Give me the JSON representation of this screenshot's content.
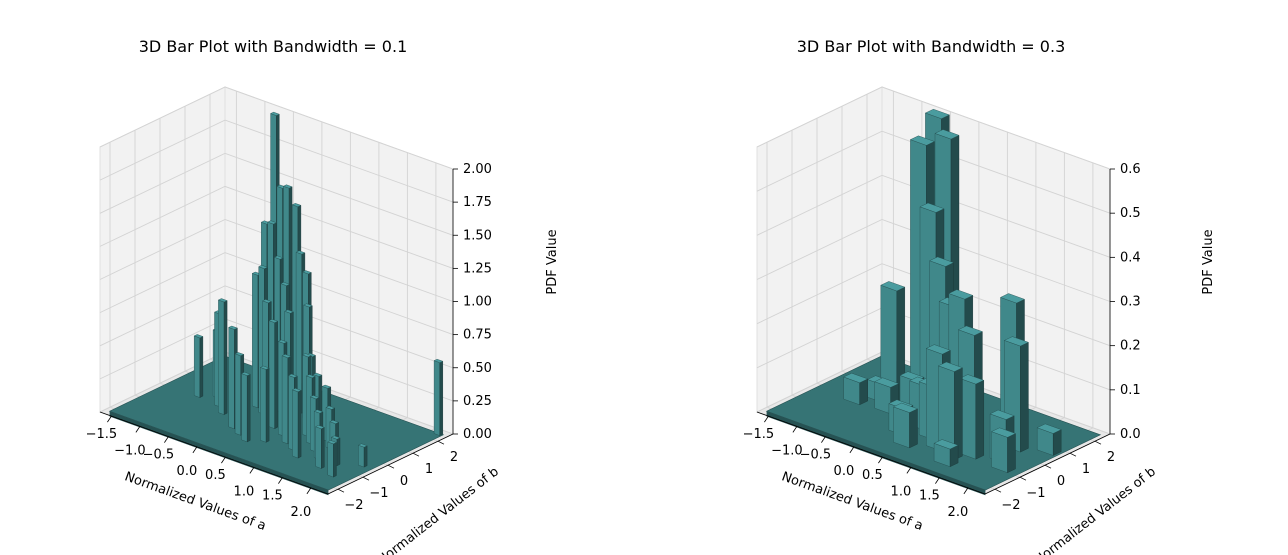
{
  "chart_data": [
    {
      "type": "bar3d",
      "title": "3D Bar Plot with Bandwidth = 0.1",
      "xlabel": "Normalized Values of a",
      "ylabel": "Normalized Values of b",
      "zlabel": "PDF Value",
      "xlim": [
        -1.7,
        2.3
      ],
      "ylim": [
        -2.4,
        2.6
      ],
      "zlim": [
        0,
        2.0
      ],
      "xticks": [
        "−1.5",
        "−1.0",
        "−0.5",
        "0.0",
        "0.5",
        "1.0",
        "1.5",
        "2.0"
      ],
      "yticks": [
        "−2",
        "−1",
        "0",
        "1",
        "2"
      ],
      "zticks": [
        "0.00",
        "0.25",
        "0.50",
        "0.75",
        "1.00",
        "1.25",
        "1.50",
        "1.75",
        "2.00"
      ],
      "bar_color": "#40888a",
      "bars": [
        {
          "x": -0.55,
          "y": 1.8,
          "z": 2.05
        },
        {
          "x": -0.35,
          "y": 1.6,
          "z": 1.55
        },
        {
          "x": -0.15,
          "y": 1.4,
          "z": 1.6
        },
        {
          "x": 0.05,
          "y": 1.3,
          "z": 1.5
        },
        {
          "x": 0.25,
          "y": 1.0,
          "z": 1.2
        },
        {
          "x": 0.45,
          "y": 0.8,
          "z": 1.1
        },
        {
          "x": 0.6,
          "y": 0.5,
          "z": 0.9
        },
        {
          "x": -0.45,
          "y": 1.2,
          "z": 1.3
        },
        {
          "x": -0.25,
          "y": 1.0,
          "z": 1.35
        },
        {
          "x": 0.0,
          "y": 0.7,
          "z": 1.15
        },
        {
          "x": 0.2,
          "y": 0.5,
          "z": 1.0
        },
        {
          "x": 0.4,
          "y": 0.2,
          "z": 0.85
        },
        {
          "x": -0.3,
          "y": 0.5,
          "z": 1.0
        },
        {
          "x": -0.1,
          "y": 0.3,
          "z": 1.1
        },
        {
          "x": 0.1,
          "y": 0.0,
          "z": 0.9
        },
        {
          "x": 0.3,
          "y": -0.2,
          "z": 0.8
        },
        {
          "x": 0.55,
          "y": -0.4,
          "z": 0.7
        },
        {
          "x": 0.75,
          "y": -0.7,
          "z": 0.65
        },
        {
          "x": 0.95,
          "y": -0.9,
          "z": 0.55
        },
        {
          "x": 1.15,
          "y": -1.2,
          "z": 0.5
        },
        {
          "x": 0.8,
          "y": 0.0,
          "z": 0.6
        },
        {
          "x": 1.0,
          "y": -0.3,
          "z": 0.5
        },
        {
          "x": 1.2,
          "y": -0.6,
          "z": 0.4
        },
        {
          "x": 1.4,
          "y": -0.9,
          "z": 0.35
        },
        {
          "x": 1.6,
          "y": -1.3,
          "z": 0.3
        },
        {
          "x": 0.7,
          "y": 0.4,
          "z": 0.55
        },
        {
          "x": 0.9,
          "y": 0.2,
          "z": 0.45
        },
        {
          "x": 1.1,
          "y": 0.1,
          "z": 0.4
        },
        {
          "x": 1.3,
          "y": -0.2,
          "z": 0.3
        },
        {
          "x": 1.5,
          "y": -0.5,
          "z": 0.25
        },
        {
          "x": 1.7,
          "y": -0.9,
          "z": 0.2
        },
        {
          "x": 2.1,
          "y": 2.3,
          "z": 0.55
        },
        {
          "x": -1.1,
          "y": 0.0,
          "z": 0.45
        },
        {
          "x": 0.5,
          "y": -1.0,
          "z": 0.55
        },
        {
          "x": 0.3,
          "y": -1.3,
          "z": 0.5
        },
        {
          "x": 0.1,
          "y": -1.1,
          "z": 0.6
        },
        {
          "x": -0.1,
          "y": -0.9,
          "z": 0.75
        },
        {
          "x": -0.5,
          "y": -0.4,
          "z": 0.85
        },
        {
          "x": -0.7,
          "y": -0.1,
          "z": 0.7
        },
        {
          "x": -0.9,
          "y": 0.3,
          "z": 0.5
        },
        {
          "x": 1.9,
          "y": -1.5,
          "z": 0.25
        },
        {
          "x": 2.0,
          "y": -0.5,
          "z": 0.15
        }
      ]
    },
    {
      "type": "bar3d",
      "title": "3D Bar Plot with Bandwidth = 0.3",
      "xlabel": "Normalized Values of a",
      "ylabel": "Normalized Values of b",
      "zlabel": "PDF Value",
      "xlim": [
        -1.7,
        2.3
      ],
      "ylim": [
        -2.4,
        2.6
      ],
      "zlim": [
        0,
        0.6
      ],
      "xticks": [
        "−1.5",
        "−1.0",
        "−0.5",
        "0.0",
        "0.5",
        "1.0",
        "1.5",
        "2.0"
      ],
      "yticks": [
        "−2",
        "−1",
        "0",
        "1",
        "2"
      ],
      "zticks": [
        "0.0",
        "0.1",
        "0.2",
        "0.3",
        "0.4",
        "0.5",
        "0.6"
      ],
      "bar_color": "#40888a",
      "bars": [
        {
          "x": -0.5,
          "y": 1.6,
          "z": 0.68
        },
        {
          "x": -0.2,
          "y": 1.3,
          "z": 0.6
        },
        {
          "x": -0.5,
          "y": 1.0,
          "z": 0.58
        },
        {
          "x": -0.2,
          "y": 0.7,
          "z": 0.45
        },
        {
          "x": 0.1,
          "y": 0.4,
          "z": 0.35
        },
        {
          "x": -0.8,
          "y": 0.5,
          "z": 0.25
        },
        {
          "x": 0.4,
          "y": 0.1,
          "z": 0.28
        },
        {
          "x": 0.7,
          "y": -0.2,
          "z": 0.32
        },
        {
          "x": 1.0,
          "y": -0.5,
          "z": 0.26
        },
        {
          "x": 1.3,
          "y": 0.5,
          "z": 0.32
        },
        {
          "x": 1.5,
          "y": 0.2,
          "z": 0.24
        },
        {
          "x": 0.7,
          "y": -1.1,
          "z": 0.22
        },
        {
          "x": 1.0,
          "y": -1.3,
          "z": 0.2
        },
        {
          "x": 1.2,
          "y": -0.9,
          "z": 0.17
        },
        {
          "x": 0.4,
          "y": -0.7,
          "z": 0.12
        },
        {
          "x": 0.1,
          "y": -0.4,
          "z": 0.1
        },
        {
          "x": -0.2,
          "y": -0.1,
          "z": 0.09
        },
        {
          "x": -0.6,
          "y": -0.2,
          "z": 0.06
        },
        {
          "x": 1.6,
          "y": -0.6,
          "z": 0.1
        },
        {
          "x": 1.8,
          "y": -1.0,
          "z": 0.08
        },
        {
          "x": 1.9,
          "y": 0.6,
          "z": 0.05
        },
        {
          "x": 0.3,
          "y": -1.5,
          "z": 0.08
        },
        {
          "x": 0.0,
          "y": -1.0,
          "z": 0.06
        },
        {
          "x": -1.1,
          "y": -0.3,
          "z": 0.05
        },
        {
          "x": -0.9,
          "y": 0.2,
          "z": 0.04
        },
        {
          "x": 1.1,
          "y": -1.7,
          "z": 0.04
        }
      ]
    }
  ]
}
